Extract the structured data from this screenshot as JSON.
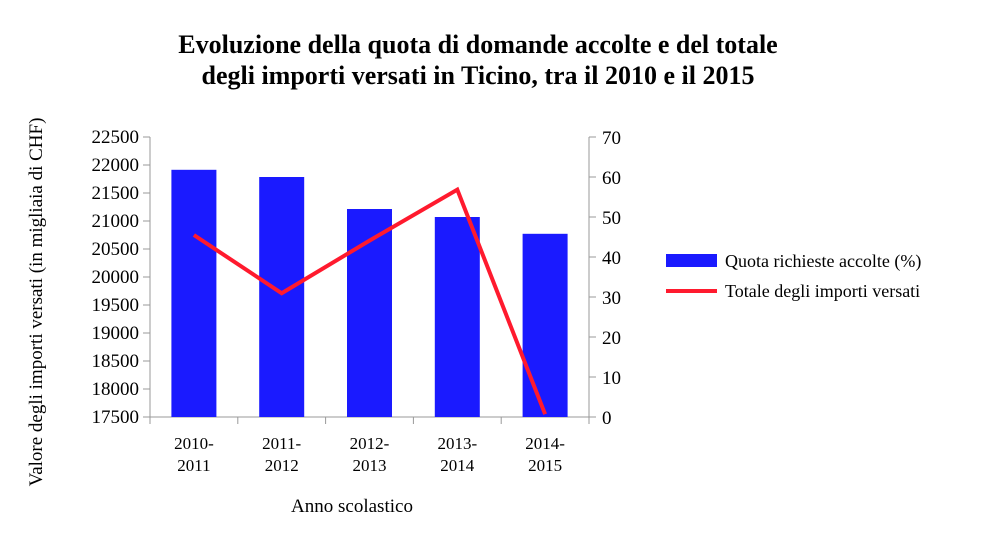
{
  "chart_data": {
    "type": "bar",
    "title_lines": [
      "Evoluzione della quota di domande accolte e del totale",
      "degli importi versati in Ticino, tra il 2010 e il 2015"
    ],
    "xlabel": "Anno scolastico",
    "ylabel": "Valore degli importi versati (in migliaia di CHF)",
    "categories": [
      [
        "2010-",
        "2011"
      ],
      [
        "2011-",
        "2012"
      ],
      [
        "2012-",
        "2013"
      ],
      [
        "2013-",
        "2014"
      ],
      [
        "2014-",
        "2015"
      ]
    ],
    "left_axis": {
      "ylim": [
        17500,
        22500
      ],
      "ticks": [
        17500,
        18000,
        18500,
        19000,
        19500,
        20000,
        20500,
        21000,
        21500,
        22000,
        22500
      ]
    },
    "right_axis": {
      "ylim": [
        0,
        70
      ],
      "ticks": [
        0,
        10,
        20,
        30,
        40,
        50,
        60,
        70
      ]
    },
    "series": [
      {
        "name": "Quota richieste accolte (%)",
        "kind": "bar",
        "axis": "right",
        "color": "#1a1aff",
        "values": [
          61.8,
          60.0,
          52.0,
          50.0,
          45.8
        ]
      },
      {
        "name": "Totale degli importi versati",
        "kind": "line",
        "axis": "left",
        "color": "#ff1a2e",
        "values": [
          20750,
          19710,
          20650,
          21560,
          17550
        ]
      }
    ],
    "legend_position": "right",
    "grid": false
  }
}
